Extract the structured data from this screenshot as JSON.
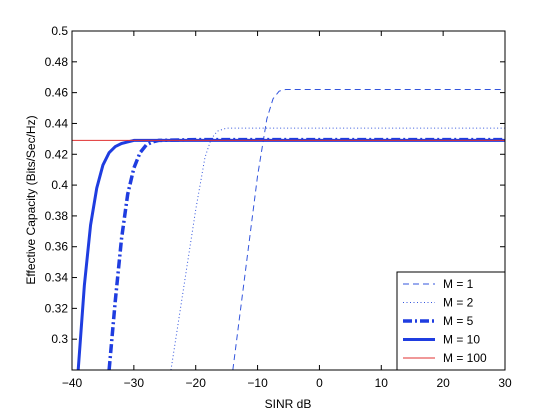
{
  "chart_data": {
    "type": "line",
    "title": "",
    "xlabel": "SINR dB",
    "ylabel": "Effective Capacity (Bits/Sec/Hz)",
    "xlim": [
      -40,
      30
    ],
    "ylim": [
      0.28,
      0.5
    ],
    "xticks": [
      -40,
      -30,
      -20,
      -10,
      0,
      10,
      20,
      30
    ],
    "xtick_labels": [
      "−40",
      "−30",
      "−20",
      "−10",
      "0",
      "10",
      "20",
      "30"
    ],
    "yticks": [
      0.3,
      0.32,
      0.34,
      0.36,
      0.38,
      0.4,
      0.42,
      0.44,
      0.46,
      0.48,
      0.5
    ],
    "ytick_labels": [
      "0.3",
      "0.32",
      "0.34",
      "0.36",
      "0.38",
      "0.4",
      "0.42",
      "0.44",
      "0.46",
      "0.48",
      "0.5"
    ],
    "grid": false,
    "legend_position": "bottom-right",
    "series": [
      {
        "name": "M = 1",
        "color": "#3355dd",
        "style": "dashed",
        "x": [
          -14.0,
          -12,
          -10,
          -8.5,
          -7.5,
          -6.5,
          -5.5,
          0,
          10,
          20,
          30
        ],
        "y": [
          0.28,
          0.343,
          0.406,
          0.443,
          0.456,
          0.461,
          0.462,
          0.462,
          0.462,
          0.462,
          0.462
        ]
      },
      {
        "name": "M = 2",
        "color": "#3355dd",
        "style": "dotted",
        "x": [
          -24.0,
          -22,
          -20,
          -18.5,
          -17.5,
          -16.5,
          -15,
          -10,
          0,
          10,
          20,
          30
        ],
        "y": [
          0.28,
          0.332,
          0.384,
          0.418,
          0.43,
          0.435,
          0.437,
          0.437,
          0.437,
          0.437,
          0.437,
          0.437
        ]
      },
      {
        "name": "M = 5",
        "color": "#1f3de0",
        "style": "dashdot",
        "x": [
          -34.0,
          -33,
          -32,
          -31,
          -30,
          -29,
          -28,
          -27,
          -26,
          -20,
          0,
          10,
          20,
          30
        ],
        "y": [
          0.28,
          0.325,
          0.365,
          0.394,
          0.411,
          0.421,
          0.426,
          0.428,
          0.429,
          0.4295,
          0.4295,
          0.4295,
          0.4295,
          0.4295
        ]
      },
      {
        "name": "M = 10",
        "color": "#1f3de0",
        "style": "solid-thick",
        "x": [
          -39.0,
          -38,
          -37,
          -36,
          -35,
          -34,
          -33,
          -32,
          -31,
          -30,
          0,
          10,
          20,
          30
        ],
        "y": [
          0.28,
          0.335,
          0.374,
          0.398,
          0.413,
          0.421,
          0.425,
          0.427,
          0.428,
          0.429,
          0.429,
          0.429,
          0.429,
          0.429
        ]
      },
      {
        "name": "M = 100",
        "color": "#e03030",
        "style": "solid-thin",
        "x": [
          -40,
          30
        ],
        "y": [
          0.429,
          0.429
        ]
      }
    ]
  }
}
